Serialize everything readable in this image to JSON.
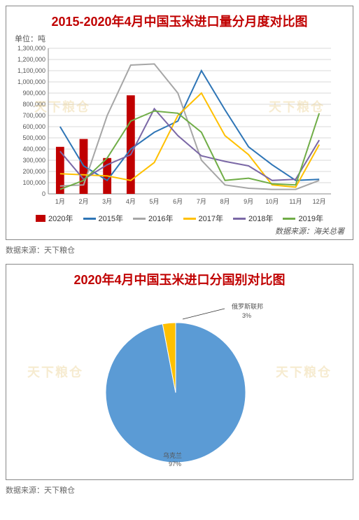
{
  "combo": {
    "type": "bar+line",
    "title": "2015-2020年4月中国玉米进口量分月度对比图",
    "unit": "单位：吨",
    "source_inside": "数据来源：海关总署",
    "source_below": "数据来源：天下粮仓",
    "watermark": "天下粮仓",
    "categories": [
      "1月",
      "2月",
      "3月",
      "4月",
      "5月",
      "6月",
      "7月",
      "8月",
      "9月",
      "10月",
      "11月",
      "12月"
    ],
    "ylim": [
      0,
      1300000
    ],
    "ytick_step": 100000,
    "bar_series": {
      "name": "2020年",
      "color": "#c00000",
      "values": [
        420000,
        490000,
        320000,
        880000,
        null,
        null,
        null,
        null,
        null,
        null,
        null,
        null
      ],
      "bar_width": 0.35
    },
    "line_series": [
      {
        "name": "2015年",
        "color": "#2e75b6",
        "values": [
          600000,
          250000,
          120000,
          400000,
          550000,
          650000,
          1100000,
          750000,
          420000,
          260000,
          120000,
          130000
        ]
      },
      {
        "name": "2016年",
        "color": "#a6a6a6",
        "values": [
          70000,
          80000,
          700000,
          1150000,
          1160000,
          900000,
          300000,
          80000,
          50000,
          40000,
          40000,
          120000
        ]
      },
      {
        "name": "2017年",
        "color": "#ffc000",
        "values": [
          180000,
          170000,
          160000,
          120000,
          280000,
          700000,
          900000,
          520000,
          350000,
          80000,
          60000,
          440000
        ]
      },
      {
        "name": "2018年",
        "color": "#7b68a6",
        "values": [
          380000,
          130000,
          260000,
          350000,
          760000,
          520000,
          340000,
          290000,
          250000,
          120000,
          130000,
          480000
        ]
      },
      {
        "name": "2019年",
        "color": "#70ad47",
        "values": [
          40000,
          120000,
          320000,
          650000,
          740000,
          720000,
          550000,
          120000,
          140000,
          90000,
          80000,
          720000
        ]
      }
    ],
    "background_color": "#ffffff",
    "grid_color": "#d9d9d9",
    "title_fontsize": 18,
    "label_fontsize": 11
  },
  "pie": {
    "type": "pie",
    "title": "2020年4月中国玉米进口分国别对比图",
    "watermark": "天下粮仓",
    "source_below": "数据来源：天下粮仓",
    "slices": [
      {
        "label": "乌克兰",
        "pct": 97,
        "color": "#5b9bd5"
      },
      {
        "label": "俄罗斯联邦",
        "pct": 3,
        "color": "#ffc000"
      }
    ],
    "label_ukr": "乌克兰",
    "pct_ukr": "97%",
    "label_rus": "俄罗斯联邦",
    "pct_rus": "3%",
    "background_color": "#ffffff",
    "title_fontsize": 18
  }
}
